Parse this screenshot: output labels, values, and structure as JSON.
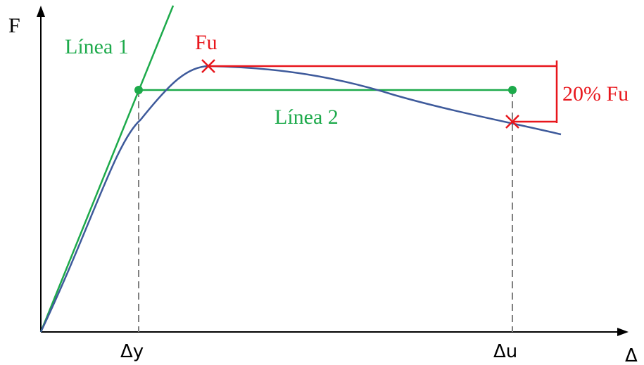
{
  "axes": {
    "y_label": "F",
    "x_label": "Δ",
    "ticks": {
      "yield": "Δy",
      "ultimate": "Δu"
    }
  },
  "labels": {
    "line1": "Línea 1",
    "line2": "Línea 2",
    "fu": "Fu",
    "drop": "20% Fu"
  },
  "colors": {
    "green": "#1DAA4B",
    "red": "#E8161C",
    "blue": "#3E5A9B",
    "gray": "#808080",
    "black": "#000000"
  }
}
